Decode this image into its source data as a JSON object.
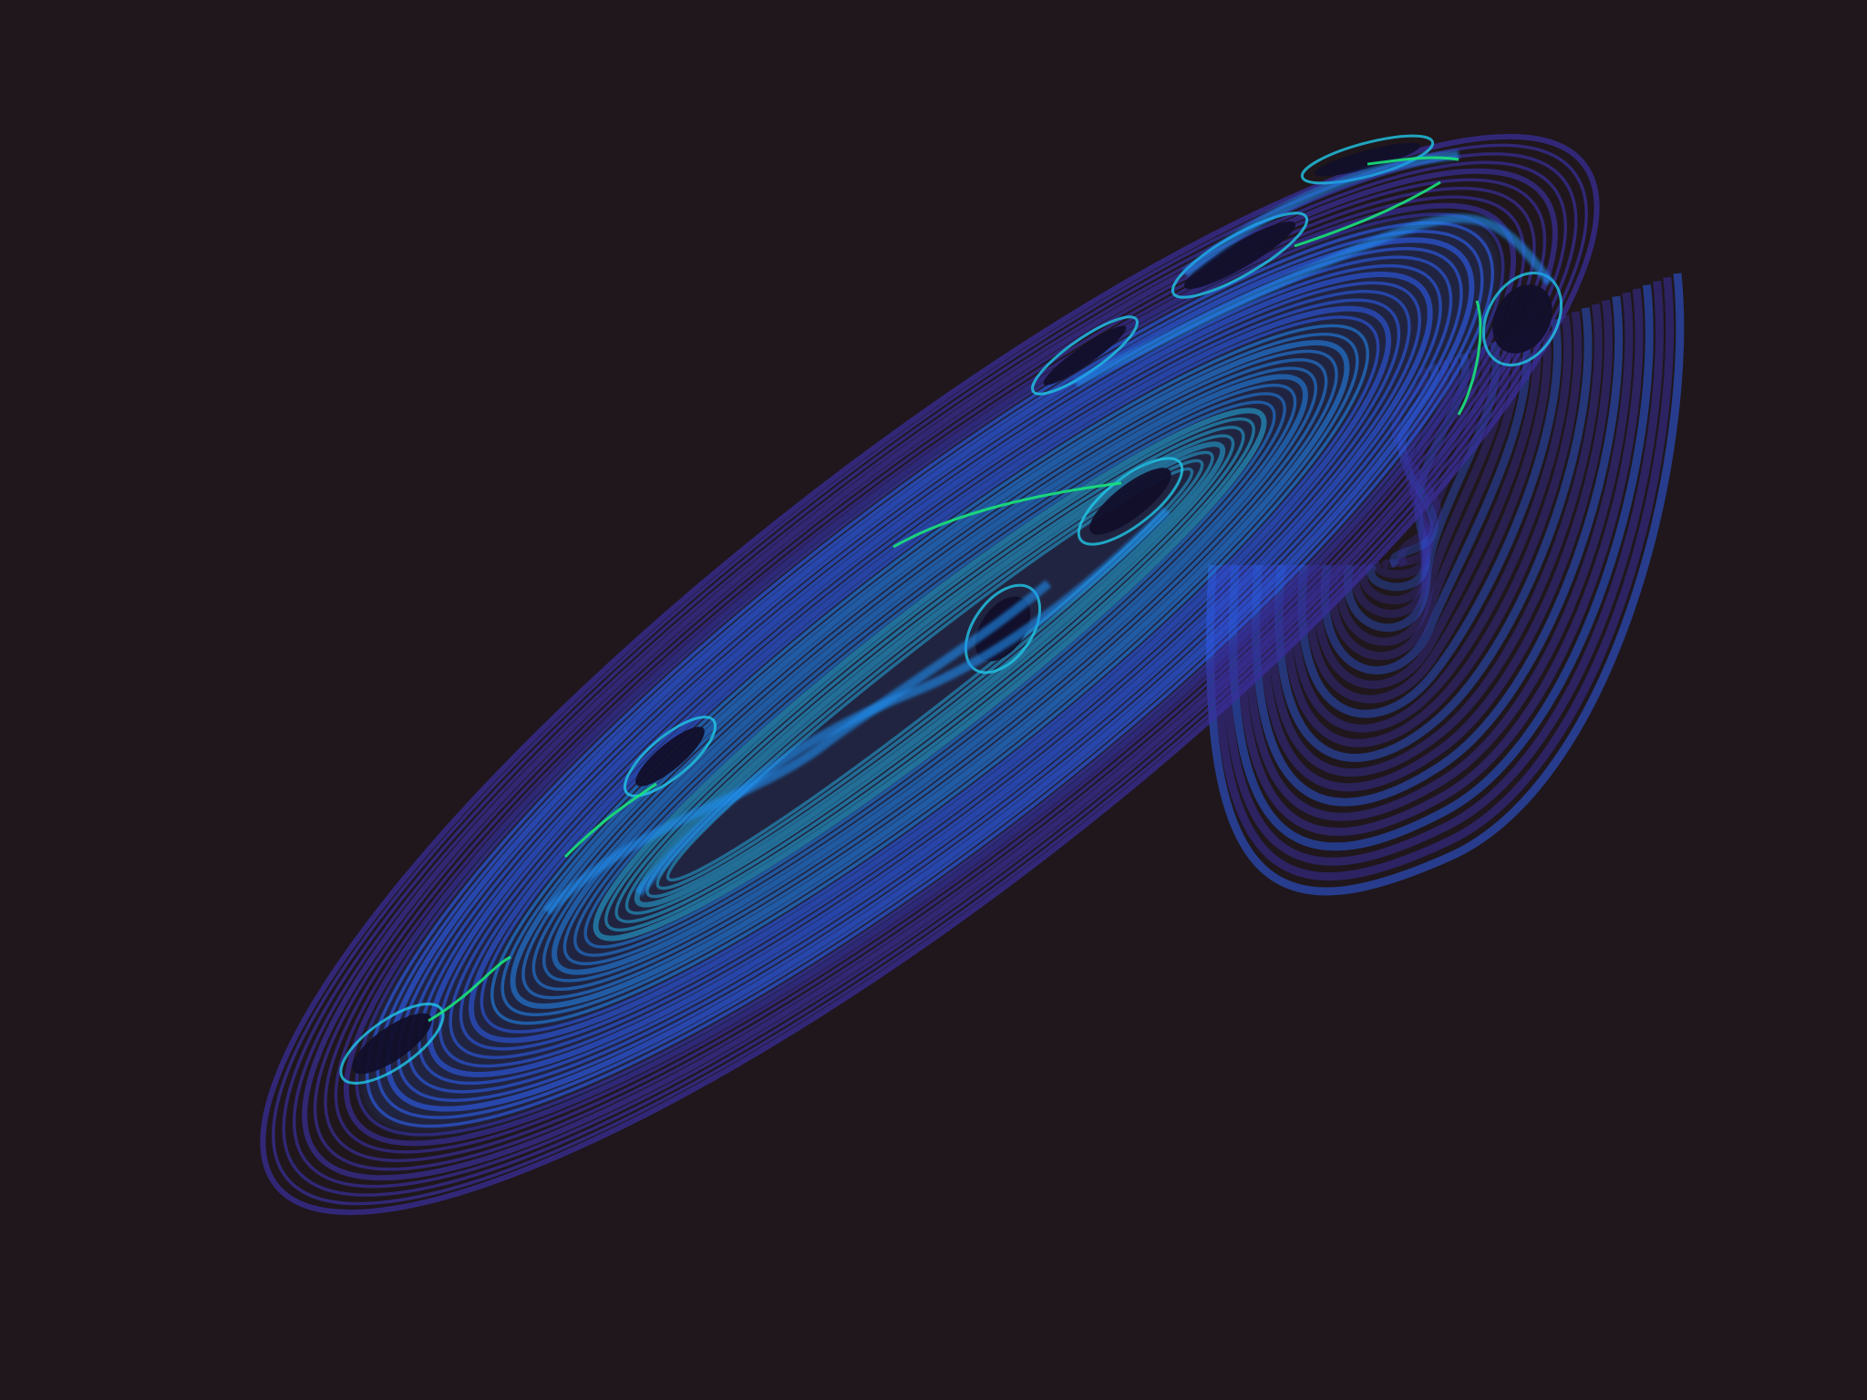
{
  "image": {
    "subject": "strange-attractor-render",
    "colors": {
      "background": "#1f171b",
      "outer_violet": "#3a2f9e",
      "mid_blue": "#2d5bea",
      "bright_blue": "#1f8ef0",
      "cyan": "#21c8e8",
      "green_highlight": "#19e37a",
      "dark_hole": "#120f2a"
    }
  }
}
